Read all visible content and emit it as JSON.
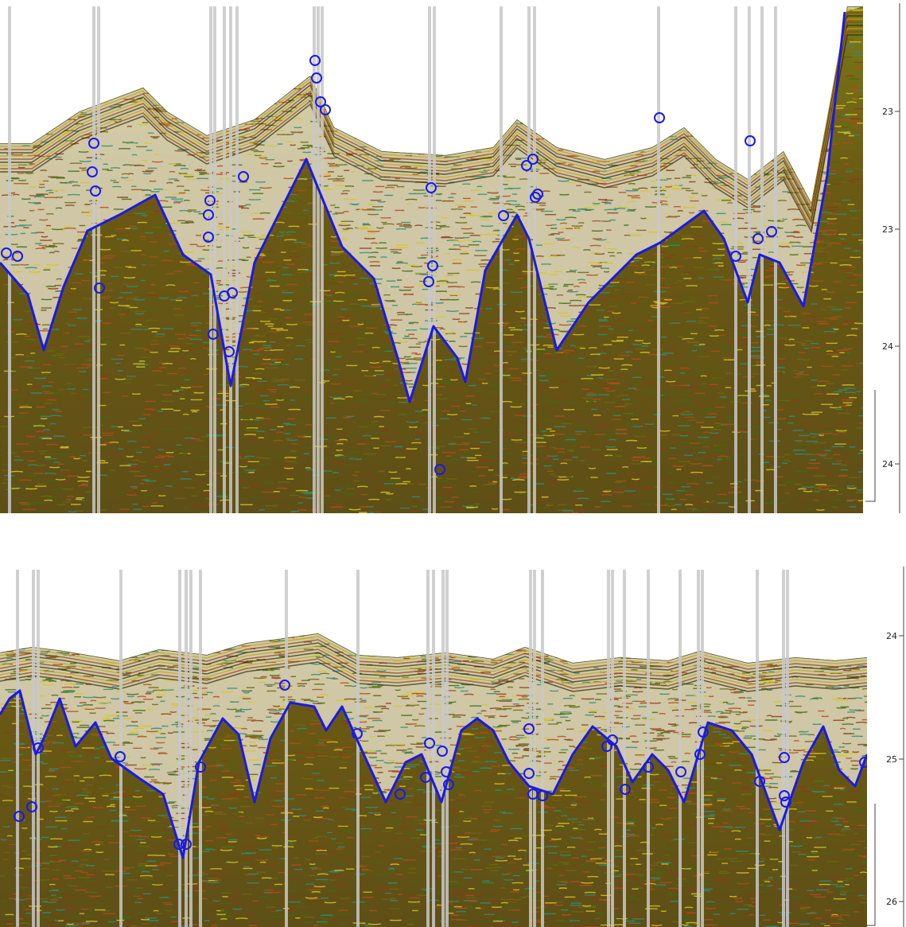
{
  "panels": [
    {
      "id": "top",
      "axis_ticks": [
        {
          "label": "23",
          "y": 22.8
        },
        {
          "label": "23",
          "y": 23.2
        },
        {
          "label": "24",
          "y": 24.0
        },
        {
          "label": "24",
          "y": 24.4
        }
      ],
      "colors": {
        "trace": "#1a1ae6",
        "picks": "#1a1ae6",
        "texture_a": "#6b6a12",
        "texture_b": "#8a3d18",
        "texture_c": "#2f8f7a",
        "shadow": "#c8c8c8"
      }
    },
    {
      "id": "bottom",
      "axis_ticks": [
        {
          "label": "24",
          "y": 24.0
        },
        {
          "label": "25",
          "y": 25.0
        },
        {
          "label": "26",
          "y": 26.0
        }
      ],
      "colors": {
        "trace": "#1a1ae6",
        "picks": "#1a1ae6",
        "texture_a": "#6b6a12",
        "texture_b": "#8a3d18",
        "texture_c": "#2f8f7a",
        "shadow": "#c8c8c8"
      }
    }
  ]
}
